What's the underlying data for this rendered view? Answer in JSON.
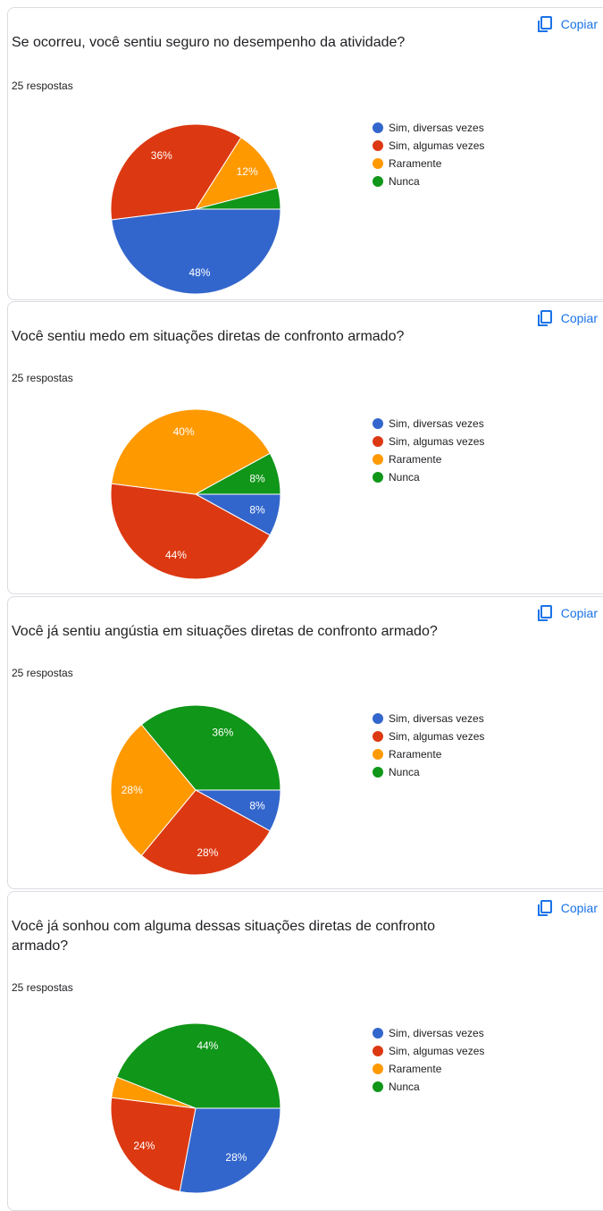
{
  "copy_label": "Copiar",
  "legend_labels": [
    "Sim, diversas vezes",
    "Sim, algumas vezes",
    "Raramente",
    "Nunca"
  ],
  "legend_colors": [
    "#3366cc",
    "#dc3912",
    "#ff9900",
    "#109618"
  ],
  "cards": [
    {
      "question": "Se ocorreu, você sentiu seguro no desempenho da atividade?",
      "responses": "25 respostas"
    },
    {
      "question": "Você sentiu medo em situações diretas de confronto armado?",
      "responses": "25 respostas"
    },
    {
      "question": "Você já sentiu angústia em situações diretas de confronto armado?",
      "responses": "25 respostas"
    },
    {
      "question": "Você já sonhou com alguma dessas situações diretas de confronto armado?",
      "responses": "25 respostas"
    }
  ],
  "chart_data": [
    {
      "type": "pie",
      "title": "Se ocorreu, você sentiu seguro no desempenho da atividade?",
      "categories": [
        "Sim, diversas vezes",
        "Sim, algumas vezes",
        "Raramente",
        "Nunca"
      ],
      "values": [
        48,
        36,
        12,
        4
      ],
      "value_labels": [
        "48%",
        "36%",
        "12%",
        ""
      ],
      "legend": "right"
    },
    {
      "type": "pie",
      "title": "Você sentiu medo em situações diretas de confronto armado?",
      "categories": [
        "Sim, diversas vezes",
        "Sim, algumas vezes",
        "Raramente",
        "Nunca"
      ],
      "values": [
        8,
        44,
        40,
        8
      ],
      "value_labels": [
        "8%",
        "44%",
        "40%",
        "8%"
      ],
      "legend": "right"
    },
    {
      "type": "pie",
      "title": "Você já sentiu angústia em situações diretas de confronto armado?",
      "categories": [
        "Sim, diversas vezes",
        "Sim, algumas vezes",
        "Raramente",
        "Nunca"
      ],
      "values": [
        8,
        28,
        28,
        36
      ],
      "value_labels": [
        "8%",
        "28%",
        "28%",
        "36%"
      ],
      "legend": "right"
    },
    {
      "type": "pie",
      "title": "Você já sonhou com alguma dessas situações diretas de confronto armado?",
      "categories": [
        "Sim, diversas vezes",
        "Sim, algumas vezes",
        "Raramente",
        "Nunca"
      ],
      "values": [
        28,
        24,
        4,
        44
      ],
      "value_labels": [
        "28%",
        "24%",
        "",
        "44%"
      ],
      "legend": "right"
    }
  ]
}
